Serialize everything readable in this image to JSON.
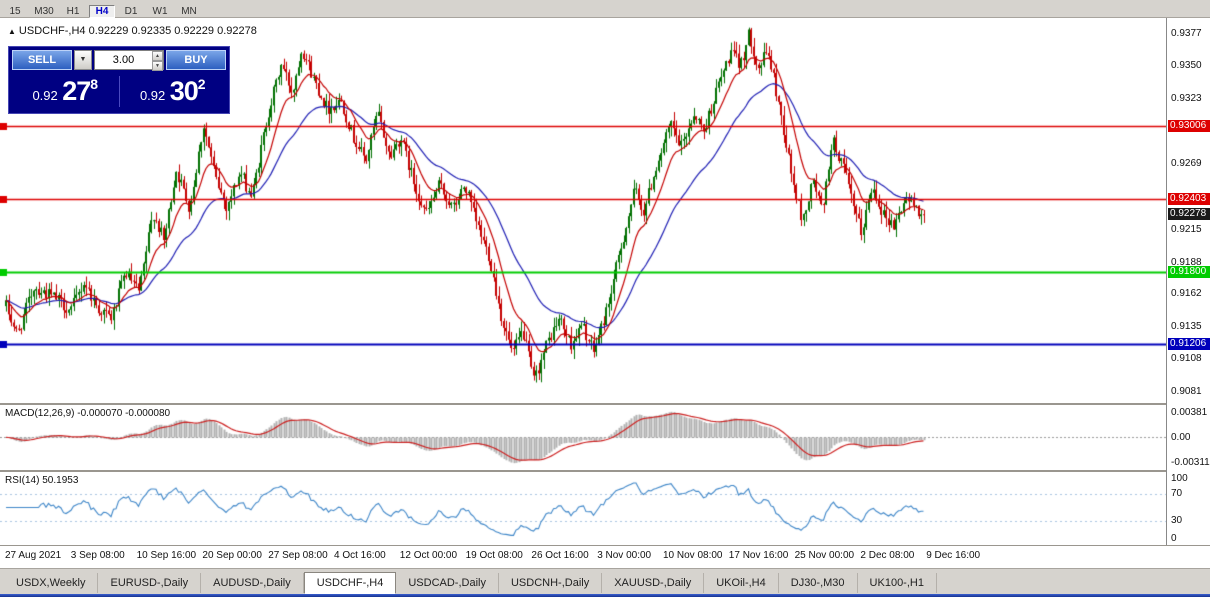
{
  "toolbar": {
    "timeframes": [
      "15",
      "M30",
      "H1",
      "H4",
      "D1",
      "W1",
      "MN"
    ],
    "active": "H4"
  },
  "chart_header": {
    "marker": "▲",
    "symbol": "USDCHF-,H4",
    "open": "0.92229",
    "high": "0.92335",
    "low": "0.92229",
    "close": "0.92278"
  },
  "trade_panel": {
    "sell_label": "SELL",
    "buy_label": "BUY",
    "volume": "3.00",
    "dropdown_glyph": "▼",
    "spin_up": "▲",
    "spin_down": "▼",
    "sell_price_small": "0.92",
    "sell_price_big": "27",
    "sell_price_sup": "8",
    "buy_price_small": "0.92",
    "buy_price_big": "30",
    "buy_price_sup": "2"
  },
  "colors": {
    "candle_up": "#007000",
    "candle_down": "#c40000",
    "ma_fast": "#c40000",
    "ma_slow": "#1f1fb4",
    "macd_hist": "#b2b2b2",
    "macd_signal": "#cc2222",
    "rsi_line": "#3e86c8",
    "rsi_level": "#a8c4e0",
    "level_red": "#dd0000",
    "level_green": "#00cc00",
    "level_blue": "#0000bb",
    "current_price_bg": "#1a1a1a",
    "panel_navy": "#000082"
  },
  "chart_data": {
    "type": "candlestick",
    "symbol": "USDCHF",
    "timeframe": "H4",
    "ohlc_current": {
      "open": 0.92229,
      "high": 0.92335,
      "low": 0.92229,
      "close": 0.92278
    },
    "price_axis": {
      "labels": [
        "0.9377",
        "0.9350",
        "0.9323",
        "0.9269",
        "0.9215",
        "0.9188",
        "0.9162",
        "0.9135",
        "0.9108",
        "0.9081"
      ],
      "range": [
        0.9072,
        0.939
      ]
    },
    "horizontal_levels": [
      {
        "label": "0.93006",
        "value": 0.93006,
        "color": "red"
      },
      {
        "label": "0.92403",
        "value": 0.92403,
        "color": "red"
      },
      {
        "label": "0.92278",
        "value": 0.92278,
        "color": "black",
        "type": "current_price"
      },
      {
        "label": "0.91800",
        "value": 0.918,
        "color": "green"
      },
      {
        "label": "0.91206",
        "value": 0.91206,
        "color": "blue"
      }
    ],
    "series": {
      "bar_count": 368,
      "price_path": [
        [
          0.0,
          0.9152
        ],
        [
          0.012,
          0.9128
        ],
        [
          0.03,
          0.9168
        ],
        [
          0.055,
          0.9158
        ],
        [
          0.07,
          0.9148
        ],
        [
          0.085,
          0.9172
        ],
        [
          0.1,
          0.915
        ],
        [
          0.115,
          0.9142
        ],
        [
          0.13,
          0.918
        ],
        [
          0.145,
          0.9163
        ],
        [
          0.16,
          0.923
        ],
        [
          0.172,
          0.9205
        ],
        [
          0.185,
          0.9265
        ],
        [
          0.2,
          0.9233
        ],
        [
          0.215,
          0.9302
        ],
        [
          0.228,
          0.9258
        ],
        [
          0.24,
          0.9234
        ],
        [
          0.255,
          0.9262
        ],
        [
          0.268,
          0.9242
        ],
        [
          0.285,
          0.931
        ],
        [
          0.3,
          0.9352
        ],
        [
          0.312,
          0.9328
        ],
        [
          0.322,
          0.9366
        ],
        [
          0.335,
          0.934
        ],
        [
          0.35,
          0.9315
        ],
        [
          0.365,
          0.9322
        ],
        [
          0.378,
          0.9292
        ],
        [
          0.392,
          0.9272
        ],
        [
          0.405,
          0.9312
        ],
        [
          0.418,
          0.9275
        ],
        [
          0.43,
          0.9292
        ],
        [
          0.445,
          0.9252
        ],
        [
          0.458,
          0.9228
        ],
        [
          0.472,
          0.9252
        ],
        [
          0.487,
          0.9232
        ],
        [
          0.5,
          0.9252
        ],
        [
          0.512,
          0.9222
        ],
        [
          0.527,
          0.9192
        ],
        [
          0.54,
          0.9142
        ],
        [
          0.552,
          0.9112
        ],
        [
          0.563,
          0.9132
        ],
        [
          0.575,
          0.909
        ],
        [
          0.59,
          0.9122
        ],
        [
          0.603,
          0.9142
        ],
        [
          0.615,
          0.912
        ],
        [
          0.628,
          0.9136
        ],
        [
          0.64,
          0.9114
        ],
        [
          0.655,
          0.915
        ],
        [
          0.67,
          0.92
        ],
        [
          0.685,
          0.9248
        ],
        [
          0.695,
          0.923
        ],
        [
          0.71,
          0.9272
        ],
        [
          0.725,
          0.9302
        ],
        [
          0.735,
          0.9282
        ],
        [
          0.75,
          0.9312
        ],
        [
          0.76,
          0.9296
        ],
        [
          0.775,
          0.9332
        ],
        [
          0.79,
          0.9362
        ],
        [
          0.8,
          0.935
        ],
        [
          0.81,
          0.9377
        ],
        [
          0.82,
          0.9348
        ],
        [
          0.83,
          0.9364
        ],
        [
          0.845,
          0.9308
        ],
        [
          0.858,
          0.9252
        ],
        [
          0.868,
          0.9222
        ],
        [
          0.88,
          0.9256
        ],
        [
          0.89,
          0.9228
        ],
        [
          0.9,
          0.929
        ],
        [
          0.912,
          0.9268
        ],
        [
          0.922,
          0.9238
        ],
        [
          0.932,
          0.9212
        ],
        [
          0.944,
          0.9252
        ],
        [
          0.956,
          0.9228
        ],
        [
          0.968,
          0.9218
        ],
        [
          0.98,
          0.9242
        ],
        [
          1.0,
          0.92278
        ]
      ]
    },
    "moving_averages": [
      {
        "name": "fast",
        "period": 12,
        "color_key": "ma_fast"
      },
      {
        "name": "slow",
        "period": 34,
        "color_key": "ma_slow"
      }
    ],
    "macd": {
      "label": "MACD(12,26,9) -0.000070 -0.000080",
      "fast": 12,
      "slow": 26,
      "signal": 9,
      "current_main": -7e-05,
      "current_signal": -8e-05,
      "axis": [
        "0.00381",
        "0.00",
        "-0.00311"
      ]
    },
    "rsi": {
      "label": "RSI(14) 50.1953",
      "period": 14,
      "current": 50.1953,
      "axis": [
        "100",
        "70",
        "30",
        "0"
      ],
      "levels": [
        70,
        30
      ]
    },
    "time_axis": [
      "27 Aug 2021",
      "3 Sep 08:00",
      "10 Sep 16:00",
      "20 Sep 00:00",
      "27 Sep 08:00",
      "4 Oct 16:00",
      "12 Oct 00:00",
      "19 Oct 08:00",
      "26 Oct 16:00",
      "3 Nov 00:00",
      "10 Nov 08:00",
      "17 Nov 16:00",
      "25 Nov 00:00",
      "2 Dec 08:00",
      "9 Dec 16:00"
    ]
  },
  "bottom_tabs": [
    {
      "label": "USDX,Weekly",
      "active": false
    },
    {
      "label": "EURUSD-,Daily",
      "active": false
    },
    {
      "label": "AUDUSD-,Daily",
      "active": false
    },
    {
      "label": "USDCHF-,H4",
      "active": true
    },
    {
      "label": "USDCAD-,Daily",
      "active": false
    },
    {
      "label": "USDCNH-,Daily",
      "active": false
    },
    {
      "label": "XAUUSD-,Daily",
      "active": false
    },
    {
      "label": "UKOil-,H4",
      "active": false
    },
    {
      "label": "DJ30-,M30",
      "active": false
    },
    {
      "label": "UK100-,H1",
      "active": false
    }
  ]
}
